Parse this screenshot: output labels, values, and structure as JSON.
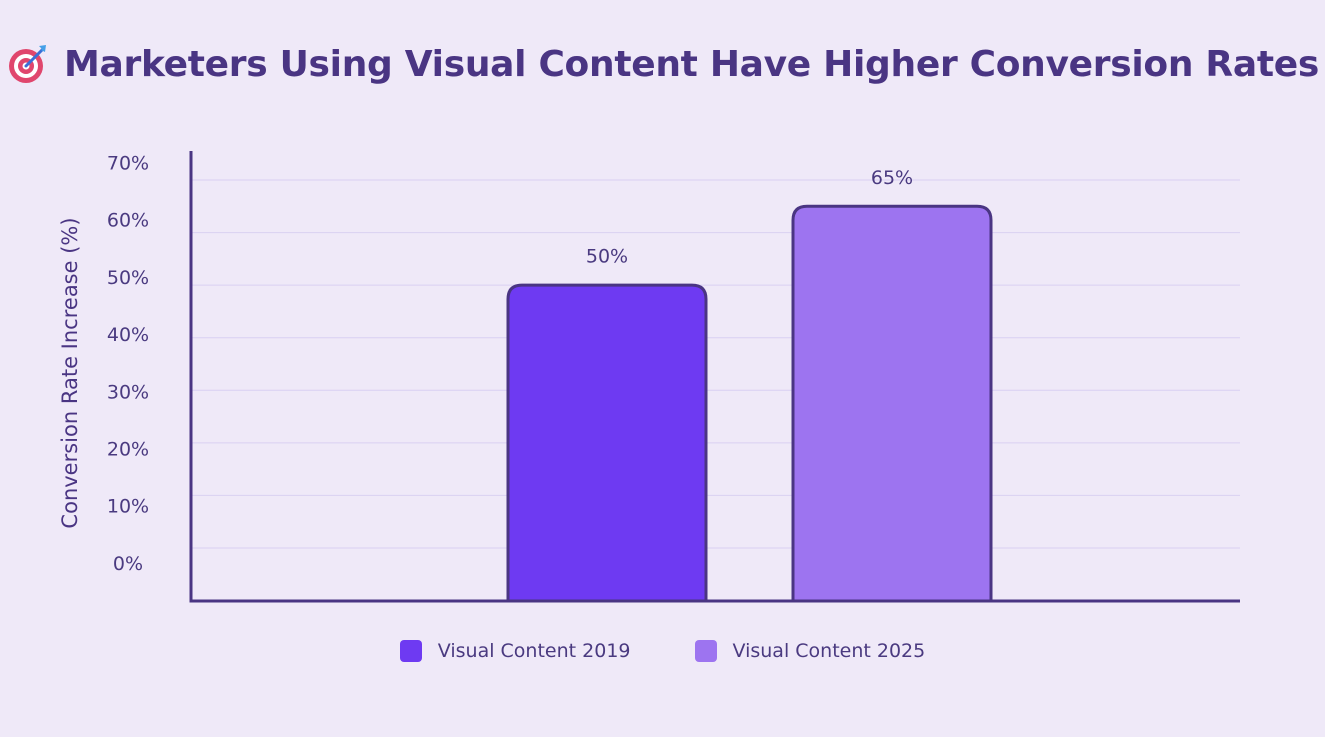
{
  "chart_data": {
    "type": "bar",
    "title": "Marketers Using Visual Content Have Higher Conversion Rates",
    "ylabel": "Conversion Rate Increase (%)",
    "xlabel": "",
    "categories": [
      "Visual Content 2019",
      "Visual Content 2025"
    ],
    "values": [
      50,
      65
    ],
    "data_labels": [
      "50%",
      "65%"
    ],
    "ylim": [
      0,
      70
    ],
    "yticks": [
      "0%",
      "10%",
      "20%",
      "30%",
      "40%",
      "50%",
      "60%",
      "70%"
    ],
    "grid": true,
    "legend_position": "bottom",
    "colors": [
      "#6e3af2",
      "#9d74f0"
    ],
    "edge_color": "#4a3583",
    "title_icon": "target-dart-icon"
  }
}
